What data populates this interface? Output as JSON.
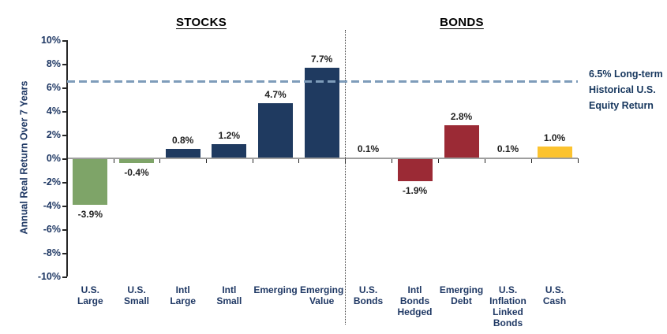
{
  "chart_data": {
    "type": "bar",
    "ylabel": "Annual Real Return Over 7 Years",
    "ylim": [
      -10,
      10
    ],
    "ytick_step": 2,
    "ytick_suffix": "%",
    "grid": false,
    "sections": [
      {
        "title": "STOCKS",
        "categories": [
          "U.S. Large",
          "U.S. Small",
          "Intl Large",
          "Intl Small",
          "Emerging",
          "Emerging Value"
        ],
        "category_label_lines": [
          [
            "U.S.",
            "Large"
          ],
          [
            "U.S.",
            "Small"
          ],
          [
            "Intl",
            "Large"
          ],
          [
            "Intl",
            "Small"
          ],
          [
            "Emerging"
          ],
          [
            "Emerging",
            "Value"
          ]
        ],
        "values": [
          -3.9,
          -0.4,
          0.8,
          1.2,
          4.7,
          7.7
        ],
        "value_labels": [
          "-3.9%",
          "-0.4%",
          "0.8%",
          "1.2%",
          "4.7%",
          "7.7%"
        ],
        "bar_colors": [
          "#7EA468",
          "#7EA468",
          "#1F3A60",
          "#1F3A60",
          "#1F3A60",
          "#1F3A60"
        ]
      },
      {
        "title": "BONDS",
        "categories": [
          "U.S. Bonds",
          "Intl Bonds Hedged",
          "Emerging Debt",
          "U.S. Inflation Linked Bonds",
          "U.S. Cash"
        ],
        "category_label_lines": [
          [
            "U.S.",
            "Bonds"
          ],
          [
            "Intl",
            "Bonds",
            "Hedged"
          ],
          [
            "Emerging",
            "Debt"
          ],
          [
            "U.S.",
            "Inflation",
            "Linked",
            "Bonds"
          ],
          [
            "U.S.",
            "Cash"
          ]
        ],
        "values": [
          0.1,
          -1.9,
          2.8,
          0.1,
          1.0
        ],
        "value_labels": [
          "0.1%",
          "-1.9%",
          "2.8%",
          "0.1%",
          "1.0%"
        ],
        "bar_colors": [
          "#9B2A35",
          "#9B2A35",
          "#9B2A35",
          "#9B2A35",
          "#FCC32F"
        ]
      }
    ],
    "reference_line": {
      "value": 6.5,
      "label_lines": [
        "6.5% Long-term",
        "Historical U.S.",
        "Equity Return"
      ],
      "color": "#7E9CBA"
    },
    "colors": {
      "axis_text": "#1F3864",
      "value_label": "#1F1F1F",
      "axis_line": "#9E9E9E",
      "tick": "#262626",
      "divider": "#404040"
    }
  }
}
